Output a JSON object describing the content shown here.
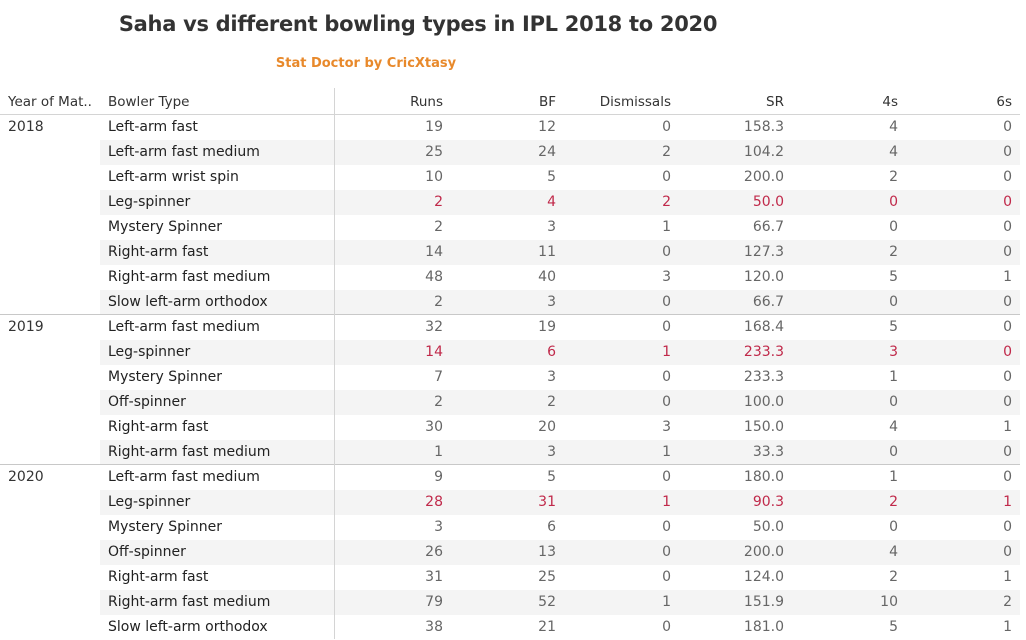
{
  "title": "Saha vs different bowling types in IPL 2018 to 2020",
  "subtitle": "Stat Doctor by CricXtasy",
  "colors": {
    "title": "#333333",
    "subtitle": "#e8892b",
    "highlight": "#c0294a",
    "value": "#666666"
  },
  "chart_data": {
    "type": "table",
    "columns": [
      "Year of Mat..",
      "Bowler Type",
      "Runs",
      "BF",
      "Dismissals",
      "SR",
      "4s",
      "6s"
    ],
    "groups": [
      {
        "year": "2018",
        "rows": [
          {
            "bowler": "Left-arm fast",
            "values": [
              "19",
              "12",
              "0",
              "158.3",
              "4",
              "0"
            ]
          },
          {
            "bowler": "Left-arm fast medium",
            "values": [
              "25",
              "24",
              "2",
              "104.2",
              "4",
              "0"
            ]
          },
          {
            "bowler": "Left-arm wrist spin",
            "values": [
              "10",
              "5",
              "0",
              "200.0",
              "2",
              "0"
            ]
          },
          {
            "bowler": "Leg-spinner",
            "highlighted": true,
            "values": [
              "2",
              "4",
              "2",
              "50.0",
              "0",
              "0"
            ]
          },
          {
            "bowler": "Mystery Spinner",
            "values": [
              "2",
              "3",
              "1",
              "66.7",
              "0",
              "0"
            ]
          },
          {
            "bowler": "Right-arm fast",
            "values": [
              "14",
              "11",
              "0",
              "127.3",
              "2",
              "0"
            ]
          },
          {
            "bowler": "Right-arm fast medium",
            "values": [
              "48",
              "40",
              "3",
              "120.0",
              "5",
              "1"
            ]
          },
          {
            "bowler": "Slow left-arm orthodox",
            "values": [
              "2",
              "3",
              "0",
              "66.7",
              "0",
              "0"
            ]
          }
        ]
      },
      {
        "year": "2019",
        "rows": [
          {
            "bowler": "Left-arm fast medium",
            "values": [
              "32",
              "19",
              "0",
              "168.4",
              "5",
              "0"
            ]
          },
          {
            "bowler": "Leg-spinner",
            "highlighted": true,
            "values": [
              "14",
              "6",
              "1",
              "233.3",
              "3",
              "0"
            ]
          },
          {
            "bowler": "Mystery Spinner",
            "values": [
              "7",
              "3",
              "0",
              "233.3",
              "1",
              "0"
            ]
          },
          {
            "bowler": "Off-spinner",
            "values": [
              "2",
              "2",
              "0",
              "100.0",
              "0",
              "0"
            ]
          },
          {
            "bowler": "Right-arm fast",
            "values": [
              "30",
              "20",
              "3",
              "150.0",
              "4",
              "1"
            ]
          },
          {
            "bowler": "Right-arm fast medium",
            "values": [
              "1",
              "3",
              "1",
              "33.3",
              "0",
              "0"
            ]
          }
        ]
      },
      {
        "year": "2020",
        "rows": [
          {
            "bowler": "Left-arm fast medium",
            "values": [
              "9",
              "5",
              "0",
              "180.0",
              "1",
              "0"
            ]
          },
          {
            "bowler": "Leg-spinner",
            "highlighted": true,
            "values": [
              "28",
              "31",
              "1",
              "90.3",
              "2",
              "1"
            ]
          },
          {
            "bowler": "Mystery Spinner",
            "values": [
              "3",
              "6",
              "0",
              "50.0",
              "0",
              "0"
            ]
          },
          {
            "bowler": "Off-spinner",
            "values": [
              "26",
              "13",
              "0",
              "200.0",
              "4",
              "0"
            ]
          },
          {
            "bowler": "Right-arm fast",
            "values": [
              "31",
              "25",
              "0",
              "124.0",
              "2",
              "1"
            ]
          },
          {
            "bowler": "Right-arm fast medium",
            "values": [
              "79",
              "52",
              "1",
              "151.9",
              "10",
              "2"
            ]
          },
          {
            "bowler": "Slow left-arm orthodox",
            "values": [
              "38",
              "21",
              "0",
              "181.0",
              "5",
              "1"
            ]
          }
        ]
      }
    ]
  }
}
